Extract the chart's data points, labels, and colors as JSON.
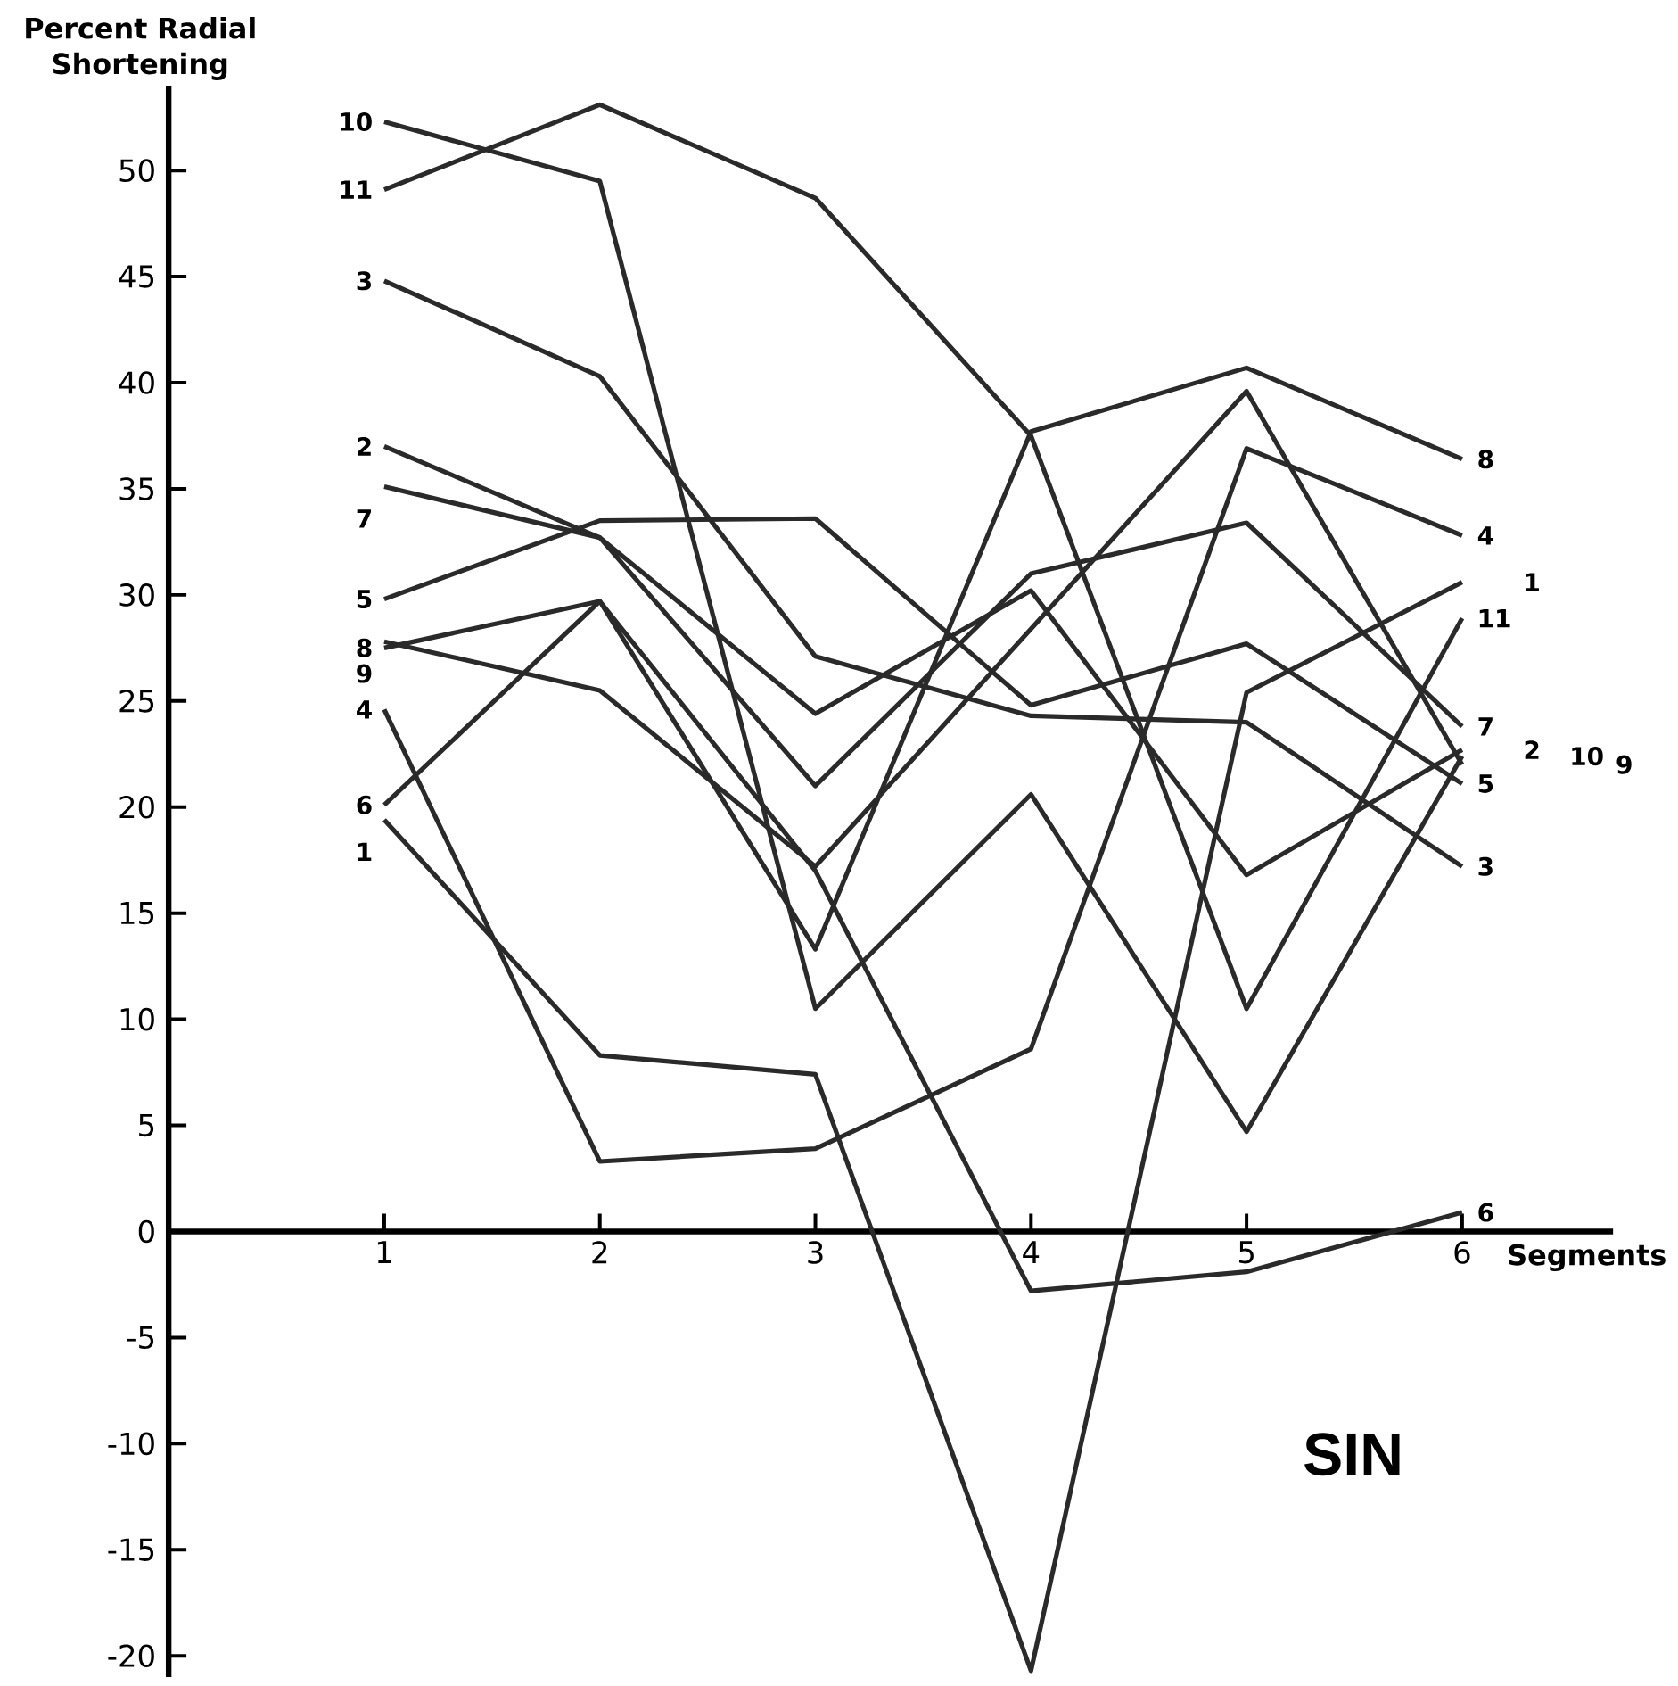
{
  "chart_data": {
    "type": "line",
    "xlabel": "Segments",
    "ylabel": "Percent Radial Shortening",
    "annotations": [
      "SIN"
    ],
    "x": [
      1,
      2,
      3,
      4,
      5,
      6
    ],
    "xlim": [
      0,
      6.7
    ],
    "xticks": [
      1,
      2,
      3,
      4,
      5,
      6
    ],
    "ylim": [
      -21,
      54
    ],
    "yticks": [
      -20,
      -15,
      -10,
      -5,
      0,
      5,
      10,
      15,
      20,
      25,
      30,
      35,
      40,
      45,
      50
    ],
    "series": [
      {
        "name": "1",
        "color": "#2a2a2a",
        "values": [
          19.4,
          8.3,
          7.4,
          -20.7,
          25.4,
          30.6
        ]
      },
      {
        "name": "2",
        "color": "#2a2a2a",
        "values": [
          37.0,
          32.7,
          24.4,
          30.2,
          16.8,
          22.7
        ]
      },
      {
        "name": "3",
        "color": "#2a2a2a",
        "values": [
          44.8,
          40.3,
          27.1,
          24.3,
          24.0,
          17.2
        ]
      },
      {
        "name": "4",
        "color": "#2a2a2a",
        "values": [
          24.6,
          3.3,
          3.9,
          8.6,
          36.9,
          32.8
        ]
      },
      {
        "name": "5",
        "color": "#2a2a2a",
        "values": [
          29.8,
          33.5,
          33.6,
          24.8,
          27.7,
          21.1
        ]
      },
      {
        "name": "6",
        "color": "#2a2a2a",
        "values": [
          20.1,
          29.7,
          17.0,
          -2.8,
          -1.9,
          0.9
        ]
      },
      {
        "name": "7",
        "color": "#2a2a2a",
        "values": [
          35.1,
          32.7,
          21.0,
          31.0,
          33.4,
          23.8
        ]
      },
      {
        "name": "8",
        "color": "#2a2a2a",
        "values": [
          27.5,
          29.7,
          13.3,
          37.7,
          40.7,
          36.4
        ]
      },
      {
        "name": "9",
        "color": "#2a2a2a",
        "values": [
          27.8,
          25.5,
          17.2,
          28.4,
          39.6,
          22.0
        ]
      },
      {
        "name": "10",
        "color": "#2a2a2a",
        "values": [
          52.3,
          49.5,
          10.5,
          20.6,
          4.7,
          22.4
        ]
      },
      {
        "name": "11",
        "color": "#2a2a2a",
        "values": [
          49.1,
          53.1,
          48.7,
          37.5,
          10.5,
          28.9
        ]
      }
    ]
  }
}
